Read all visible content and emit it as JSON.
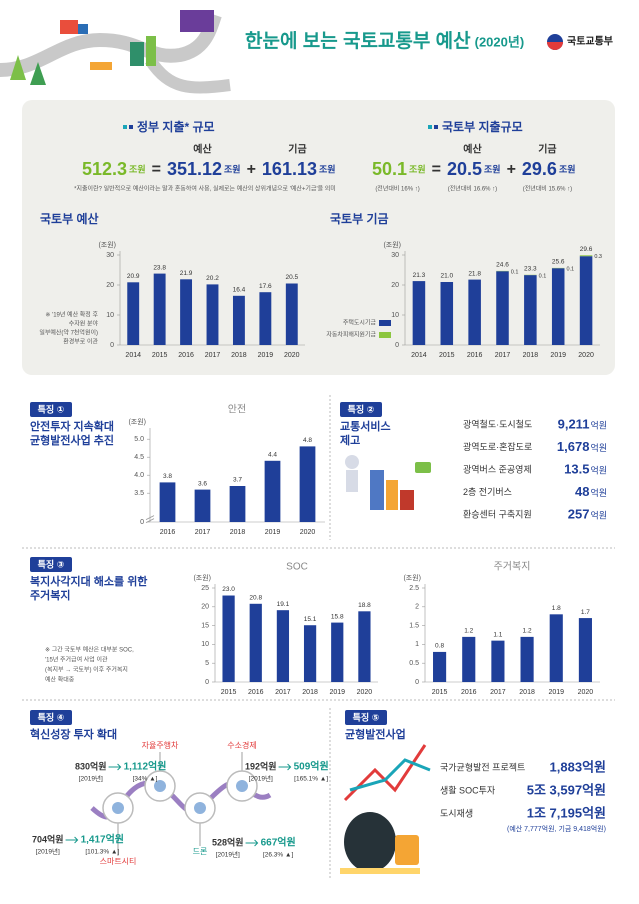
{
  "header": {
    "title": "한눈에 보는 국토교통부 예산",
    "year": "(2020년)",
    "logo": "국토교통부"
  },
  "summary": {
    "government": {
      "heading": "정부 지출* 규모",
      "total": "512.3",
      "unit": "조원",
      "equals": "=",
      "budget_label": "예산",
      "budget": "351.12",
      "plus": "+",
      "fund_label": "기금",
      "fund": "161.13",
      "footnote": "*지출이란? 일반적으로 예산이라는 말과 혼동하여 사용, 실제로는 예산의 상위개념으로 '예산+기금'을 의미"
    },
    "ministry": {
      "heading": "국토부 지출규모",
      "total": "50.1",
      "unit": "조원",
      "equals": "=",
      "budget_label": "예산",
      "budget": "20.5",
      "plus": "+",
      "fund_label": "기금",
      "fund": "29.6",
      "changes": [
        "(전년대비 16% ↑)",
        "(전년대비 16.6% ↑)",
        "(전년대비 15.6% ↑)"
      ]
    }
  },
  "chart_data": [
    {
      "type": "bar",
      "title": "국토부 예산",
      "unit": "(조원)",
      "categories": [
        "2014",
        "2015",
        "2016",
        "2017",
        "2018",
        "2019",
        "2020"
      ],
      "values": [
        20.9,
        23.8,
        21.9,
        20.2,
        16.4,
        17.6,
        20.5
      ],
      "color": "#1f3f99",
      "ylim": [
        0,
        30
      ],
      "yticks": [
        0,
        10,
        20,
        30
      ],
      "note": [
        "※ '19년 예산 확정 후",
        "수자원 분야",
        "일부예산(약 7천억원이)",
        "환경부로 이관"
      ]
    },
    {
      "type": "stacked_bar",
      "title": "국토부 기금",
      "unit": "(조원)",
      "categories": [
        "2014",
        "2015",
        "2016",
        "2017",
        "2018",
        "2019",
        "2020"
      ],
      "series": [
        {
          "name": "주택도시기금",
          "color": "#1f3f99",
          "values": [
            21.3,
            21.0,
            21.8,
            24.6,
            23.3,
            25.6,
            29.6
          ],
          "value_labels": [
            "21.3",
            "21.0",
            "21.8",
            "24.6",
            "23.3",
            "25.6",
            "29.6"
          ]
        },
        {
          "name": "자동차피해지원기금",
          "color": "#8cc63f",
          "values": [
            null,
            null,
            null,
            0.1,
            0.1,
            0.1,
            0.3
          ]
        }
      ],
      "ylim": [
        0,
        30
      ],
      "yticks": [
        0,
        10,
        20,
        30
      ],
      "legend": "lower left"
    },
    {
      "type": "bar",
      "title": "안전",
      "unit": "(조원)",
      "categories": [
        "2016",
        "2017",
        "2018",
        "2019",
        "2020"
      ],
      "values": [
        3.8,
        3.6,
        3.7,
        4.4,
        4.8
      ],
      "color": "#1f3f99",
      "ylim": [
        0,
        5.2
      ],
      "y_break": [
        0,
        3
      ],
      "yticks": [
        0,
        3.5,
        {
          "value": 4,
          "label": "4.0"
        },
        4.5,
        {
          "value": 5,
          "label": "5.0"
        }
      ]
    },
    {
      "type": "bar",
      "title": "SOC",
      "unit": "(조원)",
      "categories": [
        "2015",
        "2016",
        "2017",
        "2018",
        "2019",
        "2020"
      ],
      "values": [
        23.0,
        20.8,
        19.1,
        15.1,
        15.8,
        18.8
      ],
      "value_labels": [
        "23.0",
        "20.8",
        "19.1",
        "15.1",
        "15.8",
        "18.8"
      ],
      "color": "#1f3f99",
      "ylim": [
        0,
        25
      ],
      "yticks": [
        0,
        5,
        10,
        15,
        20,
        25
      ]
    },
    {
      "type": "bar",
      "title": "주거복지",
      "unit": "(조원)",
      "categories": [
        "2015",
        "2016",
        "2017",
        "2018",
        "2019",
        "2020"
      ],
      "values": [
        0.8,
        1.2,
        1.1,
        1.2,
        1.8,
        1.7
      ],
      "color": "#1f3f99",
      "ylim": [
        0,
        2.5
      ],
      "yticks": [
        0,
        0.5,
        1,
        1.5,
        2,
        2.5
      ]
    }
  ],
  "features": [
    {
      "badge": "특징 ①",
      "title": [
        "안전투자 지속확대",
        "균형발전사업 추진"
      ]
    },
    {
      "badge": "특징 ②",
      "title": [
        "교통서비스",
        "제고"
      ],
      "items": [
        {
          "label": "광역철도·도시철도",
          "amount": "9,211",
          "unit": "억원"
        },
        {
          "label": "광역도로·혼잡도로",
          "amount": "1,678",
          "unit": "억원"
        },
        {
          "label": "광역버스 준공영제",
          "amount": "13.5",
          "unit": "억원"
        },
        {
          "label": "2층 전기버스",
          "amount": "48",
          "unit": "억원"
        },
        {
          "label": "환승센터 구축지원",
          "amount": "257",
          "unit": "억원"
        }
      ]
    },
    {
      "badge": "특징 ③",
      "title": [
        "복지사각지대 해소를 위한",
        "주거복지"
      ],
      "note": [
        "※ 그간 국토부 예산은 대부분 SOC,",
        "'15년 주거급여 사업 이관",
        "(복지부 → 국토부) 이후 주거복지",
        "예산 확대중"
      ]
    },
    {
      "badge": "특징 ④",
      "title": [
        "혁신성장 투자 확대"
      ],
      "items": [
        {
          "name": "스마트시티",
          "from": "704억원",
          "to": "1,417억원",
          "year": "[2019년]",
          "change": "[101.3% ▲]"
        },
        {
          "name": "자율주행차",
          "from": "830억원",
          "to": "1,112억원",
          "year": "[2019년]",
          "change": "[34% ▲]"
        },
        {
          "name": "드론",
          "from": "528억원",
          "to": "667억원",
          "year": "[2019년]",
          "change": "[26.3% ▲]"
        },
        {
          "name": "수소경제",
          "from": "192억원",
          "to": "509억원",
          "year": "[2019년]",
          "change": "[165.1% ▲]"
        }
      ]
    },
    {
      "badge": "특징 ⑤",
      "title": [
        "균형발전사업"
      ],
      "items": [
        {
          "label": "국가균형발전 프로젝트",
          "amount": "1,883억원"
        },
        {
          "label": "생활 SOC투자",
          "amount": "5조 3,597억원"
        },
        {
          "label": "도시재생",
          "amount": "1조 7,195억원"
        }
      ],
      "detail": "(예산 7,777억원, 기금 9,418억원)"
    }
  ]
}
